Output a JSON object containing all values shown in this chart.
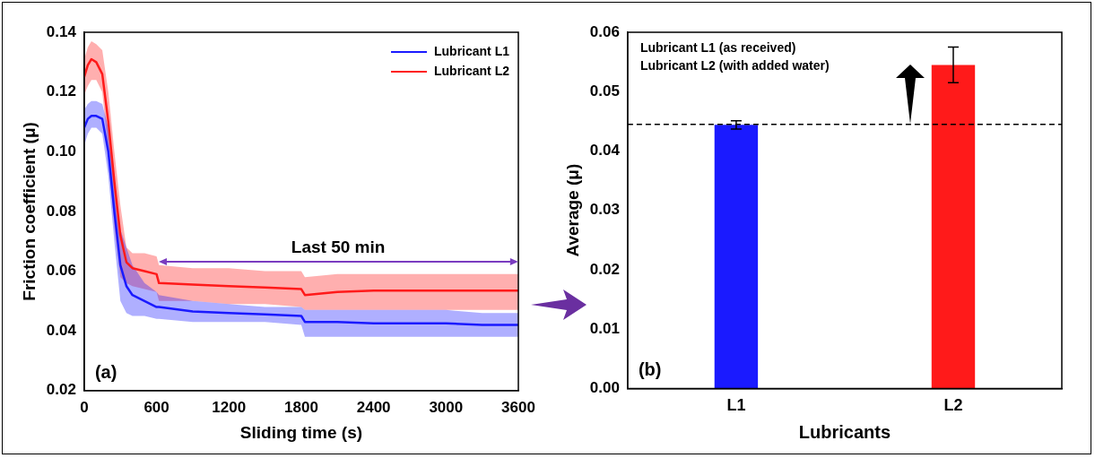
{
  "chart_data": [
    {
      "type": "line",
      "xlabel": "Sliding time (s)",
      "ylabel": "Friction coefficient (μ)",
      "legend": "top right",
      "marker": "none",
      "xlim": [
        0,
        3600
      ],
      "xticks": [
        0,
        600,
        1200,
        1800,
        2400,
        3000,
        3600
      ],
      "ylim": [
        0.02,
        0.14
      ],
      "yticks": [
        {
          "value": 0.02,
          "label": "0.02"
        },
        {
          "value": 0.04,
          "label": "0.04"
        },
        {
          "value": 0.06,
          "label": "0.06"
        },
        {
          "value": 0.08,
          "label": "0.08"
        },
        {
          "value": 0.1,
          "label": "0.10"
        },
        {
          "value": 0.12,
          "label": "0.12"
        },
        {
          "value": 0.14,
          "label": "0.14"
        }
      ],
      "x": [
        0,
        30,
        60,
        100,
        150,
        200,
        250,
        300,
        350,
        400,
        500,
        600,
        620,
        900,
        1200,
        1500,
        1800,
        1830,
        2100,
        2400,
        2700,
        3000,
        3300,
        3600
      ],
      "series": [
        {
          "name": "Lubricant L1",
          "color": "#1a1aff",
          "values": [
            0.108,
            0.111,
            0.112,
            0.112,
            0.111,
            0.1,
            0.08,
            0.062,
            0.055,
            0.052,
            0.05,
            0.048,
            0.048,
            0.0465,
            0.046,
            0.0455,
            0.045,
            0.043,
            0.043,
            0.0425,
            0.0425,
            0.0425,
            0.042,
            0.042
          ],
          "lower": [
            0.102,
            0.106,
            0.108,
            0.108,
            0.106,
            0.092,
            0.07,
            0.05,
            0.046,
            0.045,
            0.045,
            0.044,
            0.044,
            0.043,
            0.043,
            0.043,
            0.042,
            0.038,
            0.038,
            0.038,
            0.038,
            0.038,
            0.038,
            0.038
          ],
          "upper": [
            0.114,
            0.116,
            0.117,
            0.117,
            0.116,
            0.108,
            0.09,
            0.074,
            0.068,
            0.062,
            0.056,
            0.053,
            0.052,
            0.05,
            0.049,
            0.048,
            0.048,
            0.047,
            0.047,
            0.047,
            0.047,
            0.047,
            0.046,
            0.046
          ]
        },
        {
          "name": "Lubricant L2",
          "color": "#ff1a1a",
          "values": [
            0.125,
            0.129,
            0.131,
            0.13,
            0.126,
            0.11,
            0.09,
            0.072,
            0.063,
            0.061,
            0.06,
            0.059,
            0.056,
            0.0555,
            0.055,
            0.0545,
            0.054,
            0.052,
            0.053,
            0.0535,
            0.0535,
            0.0535,
            0.0535,
            0.0535
          ],
          "lower": [
            0.119,
            0.122,
            0.124,
            0.124,
            0.12,
            0.1,
            0.075,
            0.058,
            0.056,
            0.055,
            0.054,
            0.053,
            0.05,
            0.05,
            0.049,
            0.049,
            0.048,
            0.047,
            0.047,
            0.047,
            0.047,
            0.047,
            0.047,
            0.047
          ],
          "upper": [
            0.131,
            0.135,
            0.137,
            0.136,
            0.134,
            0.12,
            0.1,
            0.082,
            0.068,
            0.066,
            0.066,
            0.065,
            0.062,
            0.061,
            0.061,
            0.06,
            0.06,
            0.058,
            0.059,
            0.059,
            0.059,
            0.059,
            0.059,
            0.059
          ]
        }
      ],
      "annotations": [
        "Last 50 min",
        "(a)"
      ]
    },
    {
      "type": "bar",
      "xlabel": "Lubricants",
      "ylabel": "Average (μ)",
      "categories": [
        "L1",
        "L2"
      ],
      "values": [
        0.0444,
        0.0545
      ],
      "colors": [
        "#1a1aff",
        "#ff1a1a"
      ],
      "errors": [
        0.0007,
        0.003
      ],
      "ylim": [
        0,
        0.06
      ],
      "yticks": [
        {
          "value": 0,
          "label": "0.00"
        },
        {
          "value": 0.01,
          "label": "0.01"
        },
        {
          "value": 0.02,
          "label": "0.02"
        },
        {
          "value": 0.03,
          "label": "0.03"
        },
        {
          "value": 0.04,
          "label": "0.04"
        },
        {
          "value": 0.05,
          "label": "0.05"
        },
        {
          "value": 0.06,
          "label": "0.06"
        }
      ],
      "ref_lines": [
        {
          "axis": "y",
          "value": 0.0445,
          "color": "#000000",
          "line_style": "dashed"
        }
      ],
      "annotations": [
        "Lubricant L1 (as received)",
        "Lubricant L2 (with added water)",
        "(b)"
      ]
    }
  ]
}
